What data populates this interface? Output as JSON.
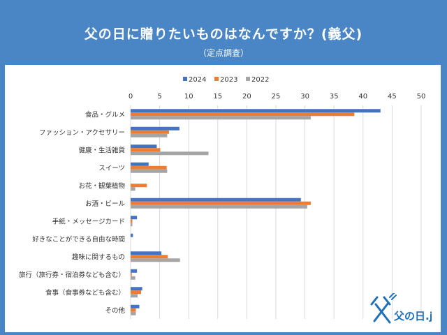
{
  "header": {
    "title": "父の日に贈りたいものはなんですか？(義父)",
    "subtitle": "（定点調査）"
  },
  "logo": {
    "text": "父の日.jp"
  },
  "colors": {
    "s2024": "#4472c4",
    "s2023": "#ed7d31",
    "s2022": "#a5a5a5",
    "grid": "#d9d9d9",
    "text": "#333333"
  },
  "chart_data": {
    "type": "bar",
    "orientation": "horizontal",
    "title": "父の日に贈りたいものはなんですか？(義父)",
    "subtitle": "（定点調査）",
    "categories": [
      "食品・グルメ",
      "ファッション・アクセサリー",
      "健康・生活雑貨",
      "スイーツ",
      "お花・観葉植物",
      "お酒・ビール",
      "手紙・メッセージカード",
      "好きなことができる自由な時間",
      "趣味に関するもの",
      "旅行（旅行券・宿泊券なども含む）",
      "食事（食事券なども含む）",
      "その他"
    ],
    "series": [
      {
        "name": "2024",
        "values": [
          43.0,
          8.4,
          4.5,
          3.1,
          0,
          29.3,
          1.1,
          0.4,
          5.3,
          1.1,
          2.0,
          1.5
        ]
      },
      {
        "name": "2023",
        "values": [
          38.5,
          6.6,
          5.1,
          6.2,
          2.8,
          31.0,
          0.3,
          0,
          6.4,
          0.2,
          1.8,
          0.9
        ]
      },
      {
        "name": "2022",
        "values": [
          31.0,
          6.3,
          13.4,
          6.3,
          0.8,
          30.4,
          0.3,
          0,
          8.5,
          0.8,
          1.2,
          0.9
        ]
      }
    ],
    "xlim": [
      0,
      50
    ],
    "xticks": [
      "0",
      "5",
      "10",
      "15",
      "20",
      "25",
      "30",
      "35",
      "40",
      "45",
      "50"
    ],
    "grid": true,
    "legend_position": "top"
  }
}
